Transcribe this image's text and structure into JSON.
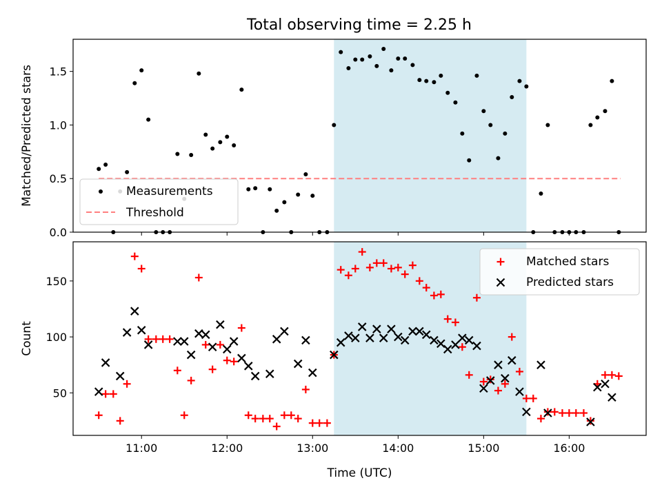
{
  "figure": {
    "title": "Total observing time = 2.25 h"
  },
  "colors": {
    "points": "#000000",
    "threshold": "#ff7f7f",
    "matched": "#ff0000",
    "predicted": "#000000",
    "shade": "#add8e6"
  },
  "chart_data": [
    {
      "type": "scatter",
      "title": "Total observing time = 2.25 h",
      "xlabel": "",
      "ylabel": "Matched/Predicted stars",
      "xlim": [
        10.2,
        16.9
      ],
      "ylim": [
        0,
        1.8
      ],
      "yticks": [
        0.0,
        0.5,
        1.0,
        1.5
      ],
      "ytick_labels": [
        "0.0",
        "0.5",
        "1.0",
        "1.5"
      ],
      "xticks": [
        11,
        12,
        13,
        14,
        15,
        16
      ],
      "xtick_labels": [
        "",
        "",
        "",
        "",
        "",
        ""
      ],
      "shaded_span": [
        13.25,
        15.5
      ],
      "grid": false,
      "legend": {
        "placement": "lower-left",
        "entries": [
          "Measurements",
          "Threshold"
        ]
      },
      "series": [
        {
          "name": "Measurements",
          "kind": "points",
          "x": [
            10.5,
            10.58,
            10.67,
            10.75,
            10.83,
            10.92,
            11.0,
            11.08,
            11.17,
            11.25,
            11.33,
            11.42,
            11.5,
            11.58,
            11.67,
            11.75,
            11.83,
            11.92,
            12.0,
            12.08,
            12.17,
            12.25,
            12.33,
            12.42,
            12.5,
            12.58,
            12.67,
            12.75,
            12.83,
            12.92,
            13.0,
            13.08,
            13.17,
            13.25,
            13.33,
            13.42,
            13.5,
            13.58,
            13.67,
            13.75,
            13.83,
            13.92,
            14.0,
            14.08,
            14.17,
            14.25,
            14.33,
            14.42,
            14.5,
            14.58,
            14.67,
            14.75,
            14.83,
            14.92,
            15.0,
            15.08,
            15.17,
            15.25,
            15.33,
            15.42,
            15.5,
            15.58,
            15.67,
            15.75,
            15.83,
            15.92,
            16.0,
            16.08,
            16.17,
            16.25,
            16.33,
            16.42,
            16.5,
            16.58
          ],
          "y": [
            0.59,
            0.63,
            0.0,
            0.38,
            0.56,
            1.39,
            1.51,
            1.05,
            0.0,
            0.0,
            0.0,
            0.73,
            0.31,
            0.72,
            1.48,
            0.91,
            0.78,
            0.84,
            0.89,
            0.81,
            1.33,
            0.4,
            0.41,
            0.0,
            0.4,
            0.2,
            0.28,
            0.0,
            0.35,
            0.54,
            0.34,
            0.0,
            0.0,
            1.0,
            1.68,
            1.53,
            1.61,
            1.61,
            1.64,
            1.55,
            1.71,
            1.51,
            1.62,
            1.62,
            1.56,
            1.42,
            1.41,
            1.4,
            1.46,
            1.3,
            1.21,
            0.92,
            0.67,
            1.46,
            1.13,
            1.0,
            0.69,
            0.92,
            1.26,
            1.41,
            1.36,
            0.0,
            0.36,
            1.0,
            0.0,
            0.0,
            0.0,
            0.0,
            0.0,
            1.0,
            1.07,
            1.13,
            1.41,
            0.0
          ]
        },
        {
          "name": "Threshold",
          "kind": "dashed-line",
          "x": [
            10.5,
            16.6
          ],
          "y": [
            0.5,
            0.5
          ]
        }
      ]
    },
    {
      "type": "scatter",
      "title": "",
      "xlabel": "Time (UTC)",
      "ylabel": "Count",
      "xlim": [
        10.2,
        16.9
      ],
      "ylim": [
        12,
        185
      ],
      "yticks": [
        50,
        100,
        150
      ],
      "ytick_labels": [
        "50",
        "100",
        "150"
      ],
      "xticks": [
        11,
        12,
        13,
        14,
        15,
        16
      ],
      "xtick_labels": [
        "11:00",
        "12:00",
        "13:00",
        "14:00",
        "15:00",
        "16:00"
      ],
      "shaded_span": [
        13.25,
        15.5
      ],
      "grid": false,
      "legend": {
        "placement": "top-right",
        "entries": [
          "Matched stars",
          "Predicted stars"
        ]
      },
      "series": [
        {
          "name": "Matched stars",
          "marker": "plus",
          "x": [
            10.5,
            10.58,
            10.67,
            10.75,
            10.83,
            10.92,
            11.0,
            11.08,
            11.17,
            11.25,
            11.33,
            11.42,
            11.5,
            11.58,
            11.67,
            11.75,
            11.83,
            11.92,
            12.0,
            12.08,
            12.17,
            12.25,
            12.33,
            12.42,
            12.5,
            12.58,
            12.67,
            12.75,
            12.83,
            12.92,
            13.0,
            13.08,
            13.17,
            13.25,
            13.33,
            13.42,
            13.5,
            13.58,
            13.67,
            13.75,
            13.83,
            13.92,
            14.0,
            14.08,
            14.17,
            14.25,
            14.33,
            14.42,
            14.5,
            14.58,
            14.67,
            14.75,
            14.83,
            14.92,
            15.0,
            15.08,
            15.17,
            15.25,
            15.33,
            15.42,
            15.5,
            15.58,
            15.67,
            15.75,
            15.83,
            15.92,
            16.0,
            16.08,
            16.17,
            16.25,
            16.33,
            16.42,
            16.5,
            16.58
          ],
          "y": [
            30,
            49,
            49,
            25,
            58,
            172,
            161,
            98,
            98,
            98,
            98,
            70,
            30,
            61,
            153,
            93,
            71,
            93,
            79,
            78,
            108,
            30,
            27,
            27,
            27,
            20,
            30,
            30,
            27,
            53,
            23,
            23,
            23,
            84,
            160,
            155,
            161,
            176,
            162,
            166,
            166,
            161,
            162,
            156,
            164,
            150,
            144,
            137,
            138,
            116,
            113,
            91,
            66,
            135,
            60,
            62,
            52,
            58,
            100,
            69,
            45,
            45,
            27,
            33,
            33,
            32,
            32,
            32,
            32,
            25,
            58,
            66,
            66,
            65
          ]
        },
        {
          "name": "Predicted stars",
          "marker": "x",
          "x": [
            10.5,
            10.58,
            10.75,
            10.83,
            10.92,
            11.0,
            11.08,
            11.42,
            11.5,
            11.58,
            11.67,
            11.75,
            11.83,
            11.92,
            12.0,
            12.08,
            12.17,
            12.25,
            12.33,
            12.5,
            12.58,
            12.67,
            12.83,
            12.92,
            13.0,
            13.25,
            13.33,
            13.42,
            13.5,
            13.58,
            13.67,
            13.75,
            13.83,
            13.92,
            14.0,
            14.08,
            14.17,
            14.25,
            14.33,
            14.42,
            14.5,
            14.58,
            14.67,
            14.75,
            14.83,
            14.92,
            15.0,
            15.08,
            15.17,
            15.25,
            15.33,
            15.42,
            15.5,
            15.67,
            15.75,
            16.25,
            16.33,
            16.42,
            16.5
          ],
          "y": [
            51,
            77,
            65,
            104,
            123,
            106,
            93,
            96,
            96,
            84,
            103,
            102,
            91,
            111,
            89,
            96,
            81,
            74,
            65,
            67,
            98,
            105,
            76,
            97,
            68,
            84,
            95,
            101,
            99,
            109,
            99,
            107,
            99,
            107,
            100,
            97,
            105,
            105,
            102,
            97,
            94,
            89,
            93,
            99,
            97,
            92,
            54,
            61,
            75,
            63,
            79,
            51,
            33,
            75,
            32,
            24,
            55,
            58,
            46
          ]
        }
      ]
    }
  ]
}
